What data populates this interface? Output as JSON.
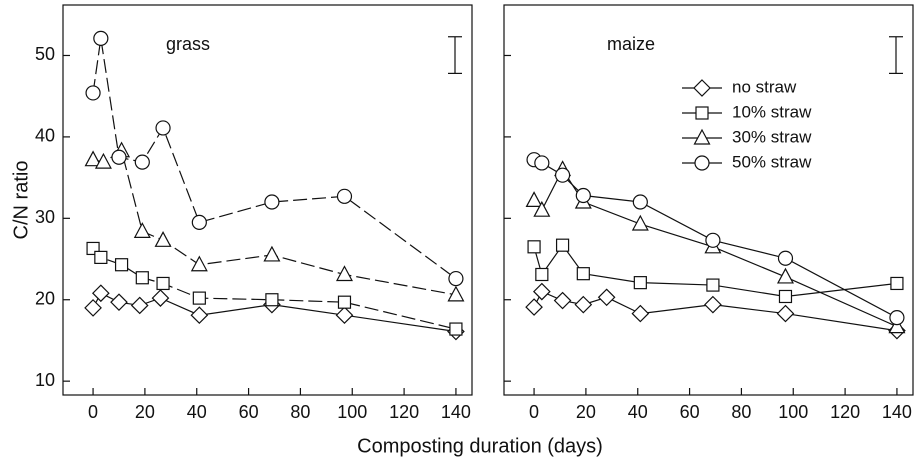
{
  "xlabel": "Composting duration (days)",
  "ylabel": "C/N ratio",
  "chart_data": [
    {
      "type": "line",
      "title": "grass",
      "xlim": [
        -11.6,
        146.2
      ],
      "ylim": [
        8.3,
        56.2
      ],
      "xticks": [
        0,
        20,
        40,
        60,
        80,
        100,
        120,
        140
      ],
      "yticks": [
        10,
        20,
        30,
        40,
        50
      ],
      "ytick_labels": true,
      "range_bar": [
        47.8,
        52.3
      ],
      "legend": false,
      "series": [
        {
          "name": "no straw",
          "marker": "diamond",
          "dashed": false,
          "color": "#111",
          "x": [
            0,
            3,
            10,
            18,
            26,
            41,
            69,
            97,
            140
          ],
          "values": [
            19,
            20.8,
            19.7,
            19.3,
            20.2,
            18.1,
            19.4,
            18.1,
            16.1
          ]
        },
        {
          "name": "10% straw",
          "marker": "square",
          "dashed": true,
          "color": "#111",
          "x": [
            0,
            3,
            11,
            19,
            27,
            41,
            69,
            97,
            140
          ],
          "values": [
            26.3,
            25.2,
            24.3,
            22.7,
            22.0,
            20.2,
            20.0,
            19.7,
            16.4
          ]
        },
        {
          "name": "30% straw",
          "marker": "triangle",
          "dashed": true,
          "color": "#111",
          "x": [
            0,
            4,
            11,
            19,
            27,
            41,
            69,
            97,
            140
          ],
          "values": [
            37.2,
            36.9,
            38.3,
            28.4,
            27.3,
            24.3,
            25.5,
            23.1,
            20.6
          ]
        },
        {
          "name": "50% straw",
          "marker": "circle",
          "dashed": true,
          "color": "#111",
          "x": [
            0,
            3,
            10,
            19,
            27,
            41,
            69,
            97,
            140
          ],
          "values": [
            45.4,
            52.1,
            37.5,
            36.9,
            41.1,
            29.5,
            32.0,
            32.7,
            22.6
          ]
        }
      ]
    },
    {
      "type": "line",
      "title": "maize",
      "xlim": [
        -11.6,
        146.2
      ],
      "ylim": [
        8.3,
        56.2
      ],
      "xticks": [
        0,
        20,
        40,
        60,
        80,
        100,
        120,
        140
      ],
      "yticks": [
        10,
        20,
        30,
        40,
        50
      ],
      "ytick_labels": false,
      "range_bar": [
        47.8,
        52.3
      ],
      "legend": "upper right",
      "series": [
        {
          "name": "no straw",
          "marker": "diamond",
          "dashed": false,
          "color": "#111",
          "x": [
            0,
            3,
            11,
            19,
            28,
            41,
            69,
            97,
            140
          ],
          "values": [
            19.1,
            21.0,
            19.9,
            19.4,
            20.3,
            18.3,
            19.4,
            18.3,
            16.2
          ]
        },
        {
          "name": "10% straw",
          "marker": "square",
          "dashed": false,
          "color": "#111",
          "x": [
            0,
            3,
            11,
            19,
            41,
            69,
            97,
            140
          ],
          "values": [
            26.5,
            23.1,
            26.7,
            23.2,
            22.1,
            21.8,
            20.4,
            22.0
          ]
        },
        {
          "name": "30% straw",
          "marker": "triangle",
          "dashed": false,
          "color": "#111",
          "x": [
            0,
            3,
            11,
            19,
            41,
            69,
            97,
            140
          ],
          "values": [
            32.2,
            31.0,
            36.0,
            32.0,
            29.3,
            26.5,
            22.8,
            16.7
          ]
        },
        {
          "name": "50% straw",
          "marker": "circle",
          "dashed": false,
          "color": "#111",
          "x": [
            0,
            3,
            11,
            19,
            41,
            69,
            97,
            140
          ],
          "values": [
            37.2,
            36.8,
            35.3,
            32.8,
            32.0,
            27.3,
            25.1,
            17.8
          ]
        }
      ]
    }
  ]
}
